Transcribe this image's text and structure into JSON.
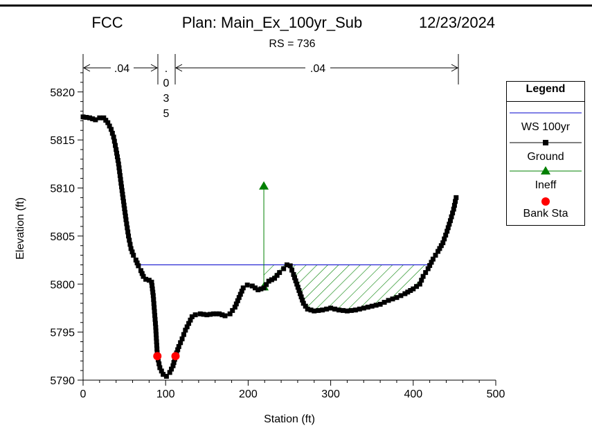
{
  "header": {
    "project": "FCC",
    "plan": "Plan: Main_Ex_100yr_Sub",
    "date": "12/23/2024",
    "rs": "RS = 736"
  },
  "manning": {
    "left": ".04",
    "channel_chars": [
      ".",
      "0",
      "3",
      "5"
    ],
    "right": ".04"
  },
  "legend": {
    "title": "Legend",
    "items": [
      {
        "label": "WS 100yr",
        "color": "#0000cc",
        "marker": "none"
      },
      {
        "label": "Ground",
        "color": "#000000",
        "marker": "square"
      },
      {
        "label": "Ineff",
        "color": "#008000",
        "marker": "triangle"
      },
      {
        "label": "Bank Sta",
        "color": "#ff0000",
        "marker": "circle"
      }
    ]
  },
  "chart_data": {
    "type": "line",
    "xlabel": "Station (ft)",
    "ylabel": "Elevation (ft)",
    "xlim": [
      0,
      500
    ],
    "ylim": [
      5790,
      5822
    ],
    "x_ticks": [
      0,
      100,
      200,
      300,
      400,
      500
    ],
    "y_ticks": [
      5790,
      5795,
      5800,
      5805,
      5810,
      5815,
      5820
    ],
    "manning_breaks": [
      0,
      90,
      112,
      452
    ],
    "ground": [
      [
        0,
        5817.4
      ],
      [
        8,
        5817.3
      ],
      [
        15,
        5817.1
      ],
      [
        20,
        5817.3
      ],
      [
        25,
        5817.3
      ],
      [
        30,
        5816.8
      ],
      [
        34,
        5816.1
      ],
      [
        37,
        5815.3
      ],
      [
        40,
        5814.0
      ],
      [
        43,
        5812.5
      ],
      [
        46,
        5810.5
      ],
      [
        49,
        5808.6
      ],
      [
        52,
        5806.7
      ],
      [
        55,
        5805.0
      ],
      [
        58,
        5803.7
      ],
      [
        61,
        5803.0
      ],
      [
        64,
        5802.5
      ],
      [
        67,
        5801.9
      ],
      [
        70,
        5801.4
      ],
      [
        73,
        5800.8
      ],
      [
        76,
        5800.5
      ],
      [
        80,
        5800.4
      ],
      [
        83,
        5800.2
      ],
      [
        85,
        5798.8
      ],
      [
        88,
        5795.5
      ],
      [
        90,
        5792.5
      ],
      [
        93,
        5791.3
      ],
      [
        97,
        5790.6
      ],
      [
        101,
        5790.4
      ],
      [
        105,
        5790.8
      ],
      [
        109,
        5791.5
      ],
      [
        112,
        5792.5
      ],
      [
        116,
        5793.5
      ],
      [
        120,
        5794.3
      ],
      [
        124,
        5795.2
      ],
      [
        128,
        5795.9
      ],
      [
        132,
        5796.6
      ],
      [
        136,
        5796.8
      ],
      [
        142,
        5796.9
      ],
      [
        150,
        5796.8
      ],
      [
        158,
        5796.9
      ],
      [
        165,
        5796.9
      ],
      [
        172,
        5796.7
      ],
      [
        178,
        5796.9
      ],
      [
        184,
        5797.6
      ],
      [
        189,
        5798.6
      ],
      [
        194,
        5799.6
      ],
      [
        199,
        5799.9
      ],
      [
        205,
        5799.8
      ],
      [
        212,
        5799.4
      ],
      [
        219,
        5799.6
      ],
      [
        225,
        5800.3
      ],
      [
        232,
        5800.6
      ],
      [
        238,
        5801.2
      ],
      [
        243,
        5801.6
      ],
      [
        247,
        5802.0
      ],
      [
        251,
        5801.9
      ],
      [
        255,
        5801.0
      ],
      [
        259,
        5800.0
      ],
      [
        263,
        5799.0
      ],
      [
        267,
        5798.0
      ],
      [
        272,
        5797.4
      ],
      [
        280,
        5797.2
      ],
      [
        290,
        5797.3
      ],
      [
        300,
        5797.5
      ],
      [
        310,
        5797.3
      ],
      [
        320,
        5797.2
      ],
      [
        330,
        5797.3
      ],
      [
        340,
        5797.5
      ],
      [
        350,
        5797.7
      ],
      [
        360,
        5797.9
      ],
      [
        370,
        5798.3
      ],
      [
        380,
        5798.6
      ],
      [
        390,
        5799.0
      ],
      [
        400,
        5799.5
      ],
      [
        408,
        5800.0
      ],
      [
        412,
        5800.8
      ],
      [
        418,
        5801.6
      ],
      [
        424,
        5802.6
      ],
      [
        430,
        5803.4
      ],
      [
        436,
        5804.3
      ],
      [
        441,
        5805.5
      ],
      [
        445,
        5806.6
      ],
      [
        449,
        5807.8
      ],
      [
        452,
        5809.0
      ]
    ],
    "ws_elevation": 5802.0,
    "ws_extent": [
      65,
      422
    ],
    "ineffective": {
      "x": 219,
      "bottom": 5799.7,
      "top": 5810.2,
      "extent": [
        219,
        422
      ]
    },
    "bank_stations": [
      [
        90,
        5792.5
      ],
      [
        112,
        5792.5
      ]
    ]
  }
}
